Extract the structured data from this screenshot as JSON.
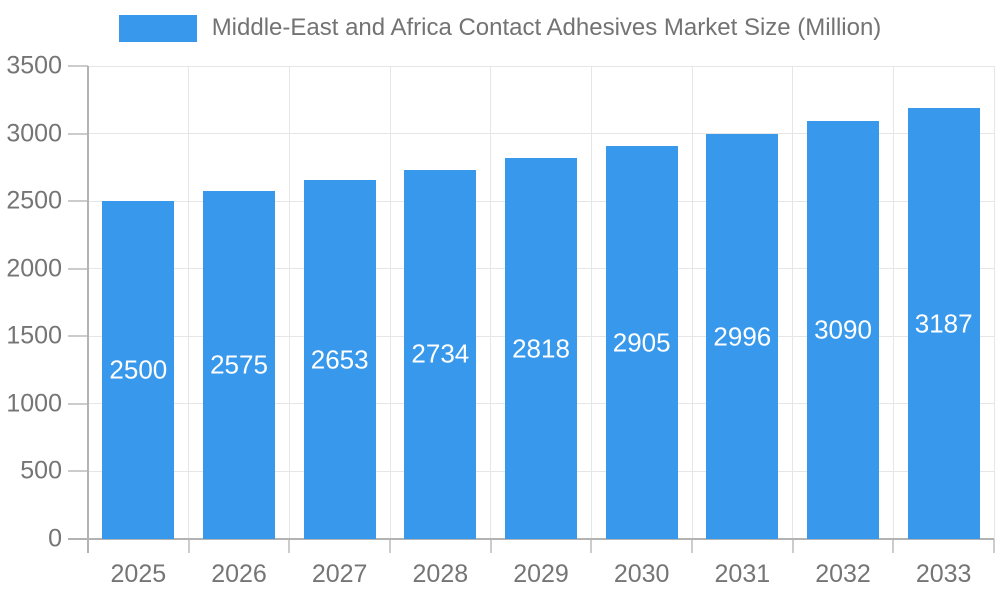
{
  "chart_data": {
    "type": "bar",
    "title": "Middle-East and Africa Contact Adhesives Market Size (Million)",
    "legend": [
      {
        "label": "Middle-East and Africa Contact Adhesives Market Size (Million)"
      }
    ],
    "legend_position": "top",
    "categories": [
      "2025",
      "2026",
      "2027",
      "2028",
      "2029",
      "2030",
      "2031",
      "2032",
      "2033"
    ],
    "series": [
      {
        "name": "Middle-East and Africa Contact Adhesives Market Size (Million)",
        "values": [
          2500,
          2575,
          2653,
          2734,
          2818,
          2905,
          2996,
          3090,
          3187
        ]
      }
    ],
    "bar_value_labels": [
      "2500",
      "2575",
      "2653",
      "2734",
      "2818",
      "2905",
      "2996",
      "3090",
      "3187"
    ],
    "xlabel": "",
    "ylabel": "",
    "ylim": [
      0,
      3500
    ],
    "y_ticks": [
      0,
      500,
      1000,
      1500,
      2000,
      2500,
      3000,
      3500
    ],
    "y_tick_labels": [
      "0",
      "500",
      "1000",
      "1500",
      "2000",
      "2500",
      "3000",
      "3500"
    ],
    "grid": true,
    "colors": {
      "bar": "#3899EC",
      "bar_value_label": "#ffffff",
      "axis_text": "#757575",
      "title_text": "#737373",
      "gridline": "#e6e6e6",
      "axis_line": "#b3b3b3",
      "tick": "#cccccc",
      "background": "#ffffff"
    }
  }
}
